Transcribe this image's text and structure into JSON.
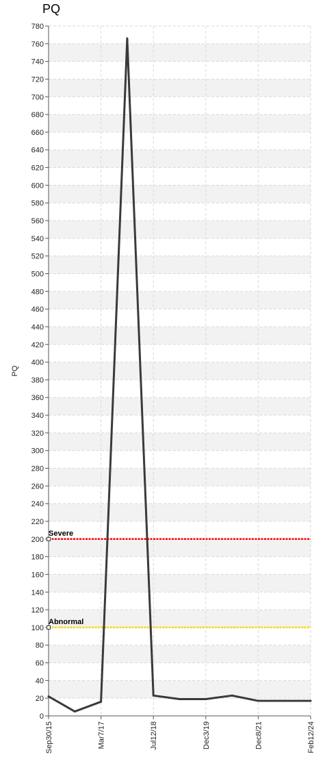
{
  "chart_data": {
    "type": "line",
    "title": "PQ",
    "xlabel": "",
    "ylabel": "PQ",
    "ylim": [
      0,
      780
    ],
    "y_tick_step": 20,
    "x_tick_labels": [
      "Sep30/15",
      "Mar7/17",
      "Jul12/18",
      "Dec3/19",
      "Dec8/21",
      "Feb12/24"
    ],
    "grid": true,
    "series": [
      {
        "color": "#3a3a3a",
        "points": [
          {
            "x_index": 0,
            "y": 22
          },
          {
            "x_index": 0.5,
            "y": 5
          },
          {
            "x_index": 1,
            "y": 16
          },
          {
            "x_index": 1.5,
            "y": 766
          },
          {
            "x_index": 2,
            "y": 23
          },
          {
            "x_index": 2.5,
            "y": 19
          },
          {
            "x_index": 3,
            "y": 19
          },
          {
            "x_index": 3.5,
            "y": 23
          },
          {
            "x_index": 4,
            "y": 17
          },
          {
            "x_index": 5,
            "y": 17
          }
        ]
      }
    ],
    "thresholds": [
      {
        "name": "Severe",
        "value": 200,
        "color": "#ff0000"
      },
      {
        "name": "Abnormal",
        "value": 100,
        "color": "#ffd700"
      }
    ]
  }
}
